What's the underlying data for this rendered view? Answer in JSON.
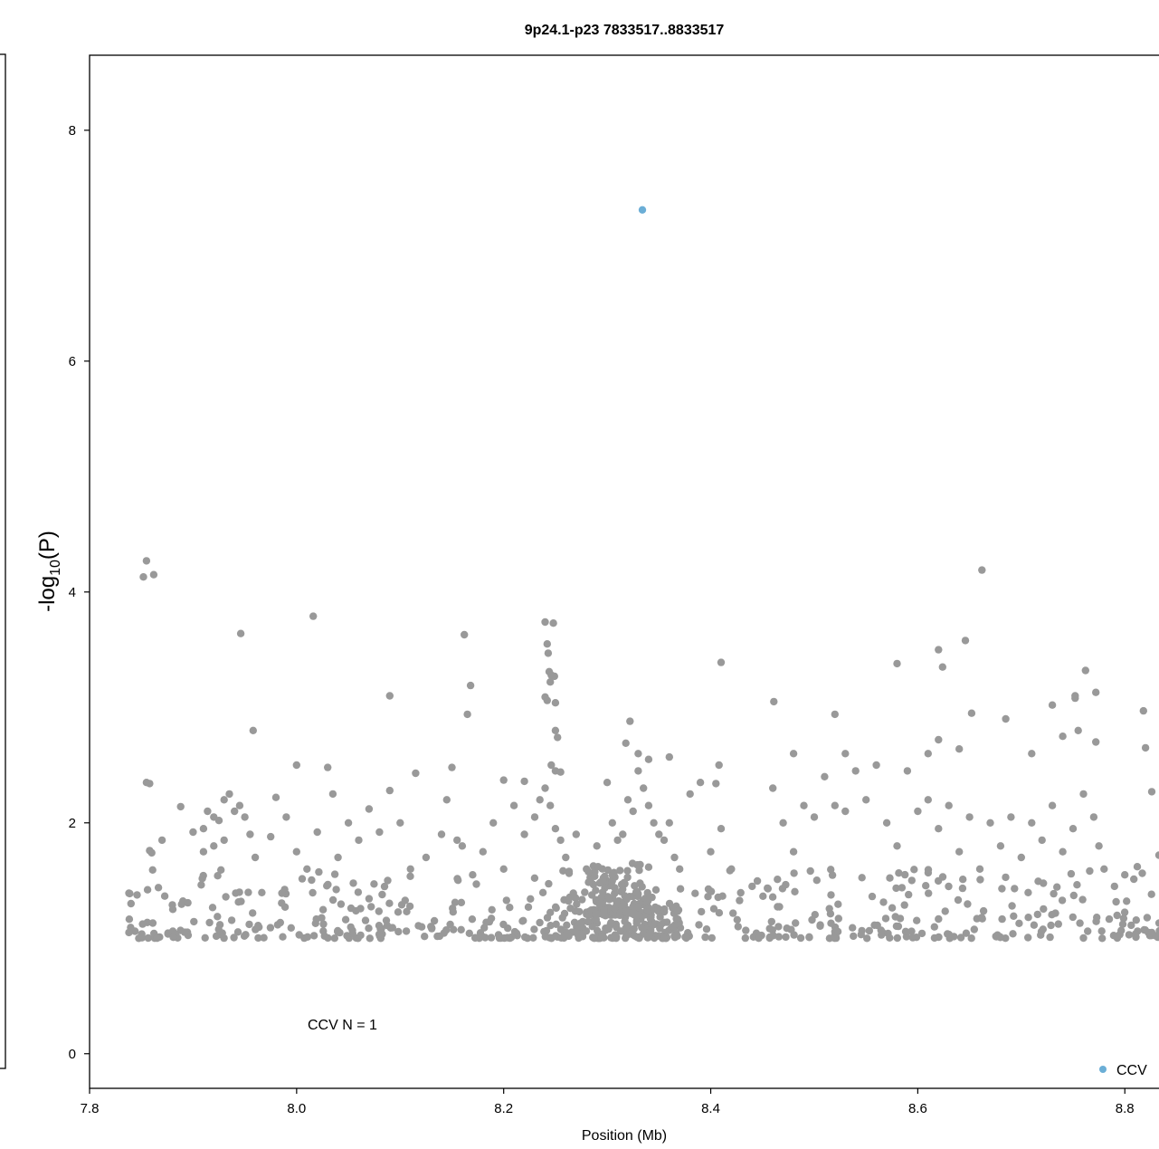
{
  "chart_data": {
    "type": "scatter",
    "title": "9p24.1-p23 7833517..8833517",
    "xlabel": "Position (Mb)",
    "ylabel": "-log10(P)",
    "ylabel_main": "-log",
    "ylabel_sub": "10",
    "ylabel_tail": "(P)",
    "xlim": [
      7.8,
      8.84
    ],
    "ylim": [
      -0.3,
      8.65
    ],
    "xticks": [
      7.8,
      8.0,
      8.2,
      8.4,
      8.6,
      8.8
    ],
    "xtick_labels": [
      "7.8",
      "8.0",
      "8.2",
      "8.4",
      "8.6",
      "8.8"
    ],
    "yticks": [
      0,
      2,
      4,
      6,
      8
    ],
    "ytick_labels": [
      "0",
      "2",
      "4",
      "6",
      "8"
    ],
    "annotation": "CCV N = 1",
    "legend": {
      "position": "bottom-right",
      "entries": [
        {
          "name": "CCV",
          "color": "#6baed6"
        }
      ]
    },
    "colors": {
      "background": "#9e9e9e",
      "ccv": "#6baed6"
    },
    "series": [
      {
        "name": "CCV",
        "color": "#6baed6",
        "points": [
          [
            8.334,
            7.31
          ]
        ]
      },
      {
        "color": "#999999",
        "points": [
          [
            7.855,
            4.27
          ],
          [
            7.852,
            4.13
          ],
          [
            7.862,
            4.15
          ],
          [
            7.855,
            2.35
          ],
          [
            7.858,
            2.34
          ],
          [
            7.946,
            3.64
          ],
          [
            8.016,
            3.79
          ],
          [
            7.958,
            2.8
          ],
          [
            8.09,
            3.1
          ],
          [
            8.0,
            2.5
          ],
          [
            8.03,
            2.48
          ],
          [
            8.115,
            2.43
          ],
          [
            8.15,
            2.48
          ],
          [
            8.162,
            3.63
          ],
          [
            8.168,
            3.19
          ],
          [
            8.165,
            2.94
          ],
          [
            8.24,
            3.74
          ],
          [
            8.248,
            3.73
          ],
          [
            8.242,
            3.55
          ],
          [
            8.243,
            3.47
          ],
          [
            8.244,
            3.31
          ],
          [
            8.246,
            3.28
          ],
          [
            8.249,
            3.27
          ],
          [
            8.245,
            3.22
          ],
          [
            8.24,
            3.09
          ],
          [
            8.242,
            3.06
          ],
          [
            8.25,
            3.04
          ],
          [
            8.25,
            2.8
          ],
          [
            8.252,
            2.74
          ],
          [
            8.246,
            2.5
          ],
          [
            8.25,
            2.45
          ],
          [
            8.255,
            2.44
          ],
          [
            8.2,
            2.37
          ],
          [
            8.22,
            2.36
          ],
          [
            8.322,
            2.88
          ],
          [
            8.318,
            2.69
          ],
          [
            8.33,
            2.6
          ],
          [
            8.34,
            2.55
          ],
          [
            8.36,
            2.57
          ],
          [
            8.41,
            3.39
          ],
          [
            8.408,
            2.5
          ],
          [
            8.405,
            2.34
          ],
          [
            8.461,
            3.05
          ],
          [
            8.48,
            2.6
          ],
          [
            8.52,
            2.94
          ],
          [
            8.53,
            2.6
          ],
          [
            8.58,
            3.38
          ],
          [
            8.62,
            3.5
          ],
          [
            8.624,
            3.35
          ],
          [
            8.646,
            3.58
          ],
          [
            8.662,
            4.19
          ],
          [
            8.652,
            2.95
          ],
          [
            8.62,
            2.72
          ],
          [
            8.61,
            2.6
          ],
          [
            8.64,
            2.64
          ],
          [
            8.685,
            2.9
          ],
          [
            8.71,
            2.6
          ],
          [
            8.73,
            3.02
          ],
          [
            8.74,
            2.75
          ],
          [
            8.752,
            3.1
          ],
          [
            8.752,
            3.08
          ],
          [
            8.762,
            3.32
          ],
          [
            8.772,
            3.13
          ],
          [
            8.772,
            2.7
          ],
          [
            8.755,
            2.8
          ],
          [
            8.818,
            2.97
          ],
          [
            8.82,
            2.65
          ],
          [
            8.826,
            2.27
          ],
          [
            8.833,
            1.72
          ],
          [
            8.826,
            1.05
          ],
          [
            8.83,
            1.02
          ],
          [
            8.812,
            1.62
          ],
          [
            8.8,
            1.55
          ],
          [
            7.838,
            1.39
          ],
          [
            7.84,
            1.3
          ],
          [
            7.838,
            1.05
          ],
          [
            7.85,
            1.02
          ],
          [
            7.856,
            1.42
          ],
          [
            7.86,
            1.74
          ],
          [
            7.858,
            1.76
          ],
          [
            7.87,
            1.85
          ],
          [
            7.888,
            2.14
          ],
          [
            7.9,
            1.92
          ],
          [
            7.91,
            1.95
          ],
          [
            7.914,
            2.1
          ],
          [
            7.92,
            2.05
          ],
          [
            7.925,
            2.02
          ],
          [
            7.93,
            2.2
          ],
          [
            7.935,
            2.25
          ],
          [
            7.94,
            2.1
          ],
          [
            7.945,
            2.15
          ],
          [
            7.95,
            2.05
          ],
          [
            7.955,
            1.9
          ],
          [
            7.96,
            1.7
          ],
          [
            7.91,
            1.75
          ],
          [
            7.92,
            1.8
          ],
          [
            7.93,
            1.85
          ],
          [
            7.975,
            1.88
          ],
          [
            7.98,
            2.22
          ],
          [
            7.99,
            2.05
          ],
          [
            8.0,
            1.75
          ],
          [
            8.01,
            1.6
          ],
          [
            8.02,
            1.92
          ],
          [
            8.035,
            2.25
          ],
          [
            8.04,
            1.7
          ],
          [
            8.05,
            2.0
          ],
          [
            8.06,
            1.85
          ],
          [
            8.07,
            2.12
          ],
          [
            8.08,
            1.92
          ],
          [
            8.09,
            2.28
          ],
          [
            8.1,
            2.0
          ],
          [
            8.11,
            1.6
          ],
          [
            8.125,
            1.7
          ],
          [
            8.14,
            1.9
          ],
          [
            8.145,
            2.2
          ],
          [
            8.155,
            1.85
          ],
          [
            8.16,
            1.8
          ],
          [
            8.17,
            1.55
          ],
          [
            8.18,
            1.75
          ],
          [
            8.19,
            2.0
          ],
          [
            8.2,
            1.6
          ],
          [
            8.21,
            2.15
          ],
          [
            8.22,
            1.9
          ],
          [
            8.23,
            2.05
          ],
          [
            8.235,
            2.2
          ],
          [
            8.24,
            2.3
          ],
          [
            8.245,
            2.15
          ],
          [
            8.25,
            1.95
          ],
          [
            8.255,
            1.85
          ],
          [
            8.26,
            1.7
          ],
          [
            8.27,
            1.9
          ],
          [
            8.28,
            1.6
          ],
          [
            8.29,
            1.8
          ],
          [
            8.3,
            2.35
          ],
          [
            8.305,
            2.0
          ],
          [
            8.31,
            1.85
          ],
          [
            8.315,
            1.9
          ],
          [
            8.32,
            2.2
          ],
          [
            8.325,
            2.1
          ],
          [
            8.33,
            2.45
          ],
          [
            8.335,
            2.3
          ],
          [
            8.34,
            2.15
          ],
          [
            8.345,
            2.0
          ],
          [
            8.35,
            1.9
          ],
          [
            8.355,
            1.85
          ],
          [
            8.36,
            2.0
          ],
          [
            8.365,
            1.7
          ],
          [
            8.37,
            1.6
          ],
          [
            8.38,
            2.25
          ],
          [
            8.39,
            2.35
          ],
          [
            8.4,
            1.75
          ],
          [
            8.41,
            1.95
          ],
          [
            8.42,
            1.6
          ],
          [
            8.44,
            1.45
          ],
          [
            8.46,
            2.3
          ],
          [
            8.47,
            2.0
          ],
          [
            8.48,
            1.75
          ],
          [
            8.49,
            2.15
          ],
          [
            8.5,
            2.05
          ],
          [
            8.51,
            2.4
          ],
          [
            8.52,
            2.15
          ],
          [
            8.53,
            2.1
          ],
          [
            8.54,
            2.45
          ],
          [
            8.55,
            2.2
          ],
          [
            8.56,
            2.5
          ],
          [
            8.57,
            2.0
          ],
          [
            8.58,
            1.8
          ],
          [
            8.59,
            2.45
          ],
          [
            8.6,
            2.1
          ],
          [
            8.61,
            2.2
          ],
          [
            8.62,
            1.95
          ],
          [
            8.63,
            2.15
          ],
          [
            8.64,
            1.75
          ],
          [
            8.65,
            2.05
          ],
          [
            8.66,
            1.6
          ],
          [
            8.67,
            2.0
          ],
          [
            8.68,
            1.8
          ],
          [
            8.69,
            2.05
          ],
          [
            8.7,
            1.7
          ],
          [
            8.71,
            2.0
          ],
          [
            8.72,
            1.85
          ],
          [
            8.73,
            2.15
          ],
          [
            8.74,
            1.75
          ],
          [
            8.75,
            1.95
          ],
          [
            8.76,
            2.25
          ],
          [
            8.77,
            2.05
          ],
          [
            8.775,
            1.8
          ],
          [
            8.78,
            1.6
          ],
          [
            8.79,
            1.45
          ]
        ],
        "dense_bands": [
          {
            "x_range": [
              7.838,
              8.835
            ],
            "y_range": [
              1.0,
              1.6
            ],
            "count": 520
          },
          {
            "x_range": [
              8.28,
              8.34
            ],
            "y_range": [
              1.2,
              1.65
            ],
            "count": 140
          },
          {
            "x_range": [
              8.25,
              8.37
            ],
            "y_range": [
              1.0,
              1.3
            ],
            "count": 120
          }
        ]
      }
    ]
  }
}
